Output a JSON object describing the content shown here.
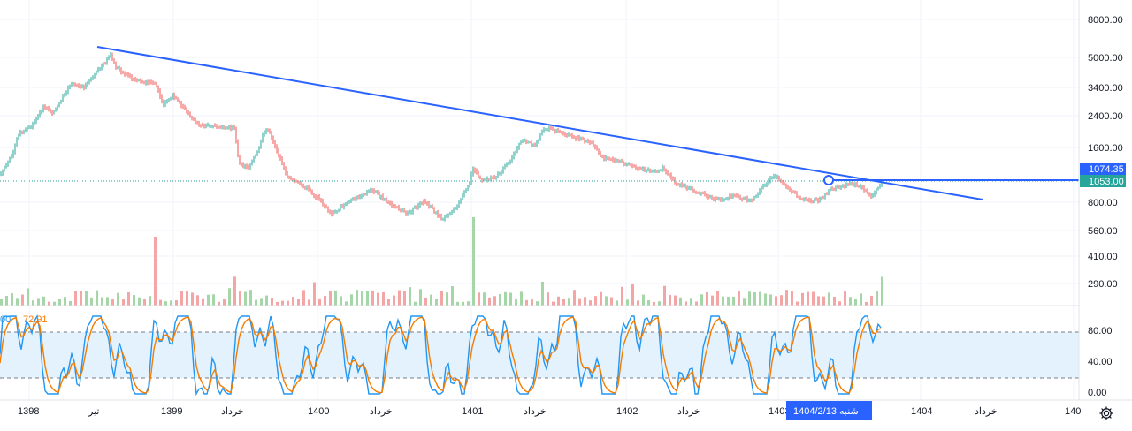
{
  "price_axis": {
    "ticks": [
      "8000.00",
      "5000.00",
      "3400.00",
      "2400.00",
      "1600.00",
      "800.00",
      "560.00",
      "410.00",
      "290.00"
    ],
    "tick_values": [
      8000,
      5000,
      3400,
      2400,
      1600,
      800,
      560,
      410,
      290
    ],
    "scale": "log"
  },
  "price_badges": {
    "last_price": "1074.35",
    "last_price_color": "#2962FF",
    "line_price": "1053.00",
    "line_price_color": "#26A69A"
  },
  "oscillator": {
    "value_1": "00",
    "value_1_color": "#2196F3",
    "value_2": "72.91",
    "value_2_color": "#F57C00",
    "ticks": [
      "80.00",
      "40.00",
      "0.00"
    ],
    "upper_band": 80,
    "lower_band": 20,
    "band_color": "#E3F2FD"
  },
  "time_axis": {
    "labels": [
      "1398",
      "تیر",
      "1399",
      "خرداد",
      "1400",
      "خرداد",
      "1401",
      "خرداد",
      "1402",
      "خرداد",
      "1403",
      "1404",
      "خرداد",
      "140"
    ],
    "crosshair_date": "1404/2/13  شنبه"
  },
  "drawing": {
    "trendline_color": "#2962FF",
    "up_color": "#26A69A",
    "down_color": "#EF5350"
  },
  "toolbar": {
    "settings_icon": "gear-icon"
  }
}
